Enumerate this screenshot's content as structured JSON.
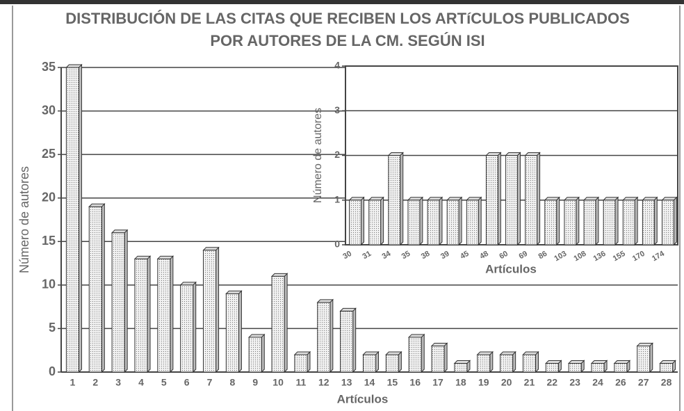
{
  "chart_data": [
    {
      "type": "bar",
      "title": [
        "DISTRIBUCIÓN DE LAS CITAS QUE RECIBEN LOS ARTíCULOS PUBLICADOS",
        "POR AUTORES DE LA CM. SEGÚN ISI"
      ],
      "x_label": "Artículos",
      "y_label": "Número de autores",
      "categories": [
        "1",
        "2",
        "3",
        "4",
        "5",
        "6",
        "7",
        "8",
        "9",
        "10",
        "11",
        "12",
        "13",
        "14",
        "15",
        "16",
        "17",
        "18",
        "19",
        "20",
        "21",
        "22",
        "23",
        "24",
        "26",
        "27",
        "28"
      ],
      "values": [
        35,
        19,
        16,
        13,
        13,
        10,
        14,
        9,
        4,
        11,
        2,
        8,
        7,
        2,
        2,
        4,
        3,
        1,
        2,
        2,
        2,
        1,
        1,
        1,
        1,
        3,
        1
      ],
      "ylim": [
        0,
        35
      ],
      "yticks": [
        0,
        5,
        10,
        15,
        20,
        25,
        30,
        35
      ],
      "grid": true
    },
    {
      "type": "bar",
      "x_label": "Artículos",
      "y_label": "Número de autores",
      "categories": [
        "30",
        "31",
        "34",
        "35",
        "38",
        "39",
        "45",
        "48",
        "60",
        "69",
        "86",
        "103",
        "108",
        "136",
        "155",
        "170",
        "174"
      ],
      "values": [
        1,
        1,
        2,
        1,
        1,
        1,
        1,
        2,
        2,
        2,
        1,
        1,
        1,
        1,
        1,
        1,
        1
      ],
      "ylim": [
        0,
        4
      ],
      "yticks": [
        0,
        1,
        2,
        3,
        4
      ],
      "grid": true
    }
  ]
}
